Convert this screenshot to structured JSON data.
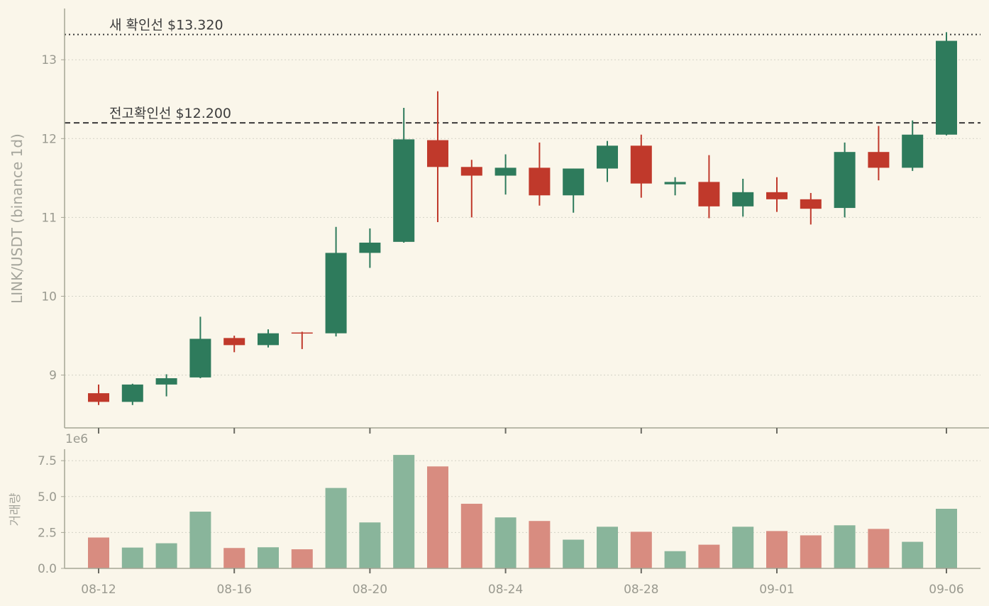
{
  "chart_data": {
    "type": "candlestick",
    "ylabel": "LINK/USDT (binance 1d)",
    "volume_ylabel": "거래량",
    "volume_scale_label": "1e6",
    "price_yticks": [
      9,
      10,
      11,
      12,
      13
    ],
    "price_ylim": [
      8.33,
      13.65
    ],
    "volume_yticks": [
      "0.0",
      "2.5",
      "5.0",
      "7.5"
    ],
    "volume_ylim": [
      0,
      8.3
    ],
    "x_tick_labels": [
      "08-12",
      "08-16",
      "08-20",
      "08-24",
      "08-28",
      "09-01",
      "09-06"
    ],
    "x_tick_dates": [
      "08-12",
      "08-16",
      "08-20",
      "08-24",
      "08-28",
      "09-01",
      "09-06"
    ],
    "grid": true,
    "colors": {
      "up": "#2e7b5c",
      "down": "#c0392b",
      "up_volume": "#89b59b",
      "down_volume": "#d88c80",
      "background": "#faf6ea",
      "axis": "#a5a595",
      "grid": "#d4d2c6",
      "reference_line": "#3a3a3a"
    },
    "reference_lines": [
      {
        "label": "새 확인선 $13.320",
        "value": 13.32,
        "style": "dotted"
      },
      {
        "label": "전고확인선 $12.200",
        "value": 12.2,
        "style": "dashed"
      }
    ],
    "candles": [
      {
        "date": "08-12",
        "open": 8.77,
        "high": 8.88,
        "low": 8.62,
        "close": 8.66,
        "volume": 2.15
      },
      {
        "date": "08-13",
        "open": 8.66,
        "high": 8.89,
        "low": 8.62,
        "close": 8.88,
        "volume": 1.45
      },
      {
        "date": "08-14",
        "open": 8.88,
        "high": 9.01,
        "low": 8.73,
        "close": 8.96,
        "volume": 1.75
      },
      {
        "date": "08-15",
        "open": 8.97,
        "high": 9.74,
        "low": 8.96,
        "close": 9.46,
        "volume": 3.95
      },
      {
        "date": "08-16",
        "open": 9.47,
        "high": 9.5,
        "low": 9.29,
        "close": 9.38,
        "volume": 1.42
      },
      {
        "date": "08-17",
        "open": 9.38,
        "high": 9.58,
        "low": 9.35,
        "close": 9.53,
        "volume": 1.47
      },
      {
        "date": "08-18",
        "open": 9.54,
        "high": 9.55,
        "low": 9.33,
        "close": 9.53,
        "volume": 1.33
      },
      {
        "date": "08-19",
        "open": 9.53,
        "high": 10.88,
        "low": 9.49,
        "close": 10.55,
        "volume": 5.6
      },
      {
        "date": "08-20",
        "open": 10.55,
        "high": 10.86,
        "low": 10.36,
        "close": 10.68,
        "volume": 3.2
      },
      {
        "date": "08-21",
        "open": 10.69,
        "high": 12.39,
        "low": 10.68,
        "close": 11.99,
        "volume": 7.9
      },
      {
        "date": "08-22",
        "open": 11.98,
        "high": 12.6,
        "low": 10.94,
        "close": 11.64,
        "volume": 7.1
      },
      {
        "date": "08-23",
        "open": 11.64,
        "high": 11.73,
        "low": 11.0,
        "close": 11.53,
        "volume": 4.5
      },
      {
        "date": "08-24",
        "open": 11.53,
        "high": 11.8,
        "low": 11.29,
        "close": 11.63,
        "volume": 3.55
      },
      {
        "date": "08-25",
        "open": 11.63,
        "high": 11.95,
        "low": 11.15,
        "close": 11.28,
        "volume": 3.3
      },
      {
        "date": "08-26",
        "open": 11.28,
        "high": 11.62,
        "low": 11.06,
        "close": 11.62,
        "volume": 2.0
      },
      {
        "date": "08-27",
        "open": 11.62,
        "high": 11.97,
        "low": 11.45,
        "close": 11.91,
        "volume": 2.9
      },
      {
        "date": "08-28",
        "open": 11.91,
        "high": 12.05,
        "low": 11.25,
        "close": 11.43,
        "volume": 2.55
      },
      {
        "date": "08-29",
        "open": 11.42,
        "high": 11.51,
        "low": 11.28,
        "close": 11.45,
        "volume": 1.2
      },
      {
        "date": "08-30",
        "open": 11.45,
        "high": 11.79,
        "low": 10.99,
        "close": 11.14,
        "volume": 1.65
      },
      {
        "date": "08-31",
        "open": 11.14,
        "high": 11.49,
        "low": 11.01,
        "close": 11.32,
        "volume": 2.9
      },
      {
        "date": "09-01",
        "open": 11.32,
        "high": 11.51,
        "low": 11.07,
        "close": 11.23,
        "volume": 2.6
      },
      {
        "date": "09-02",
        "open": 11.23,
        "high": 11.31,
        "low": 10.91,
        "close": 11.11,
        "volume": 2.3
      },
      {
        "date": "09-03",
        "open": 11.12,
        "high": 11.95,
        "low": 11.0,
        "close": 11.83,
        "volume": 3.0
      },
      {
        "date": "09-04",
        "open": 11.83,
        "high": 12.16,
        "low": 11.47,
        "close": 11.63,
        "volume": 2.75
      },
      {
        "date": "09-05",
        "open": 11.63,
        "high": 12.23,
        "low": 11.59,
        "close": 12.05,
        "volume": 1.85
      },
      {
        "date": "09-06",
        "open": 12.05,
        "high": 13.35,
        "low": 12.04,
        "close": 13.24,
        "volume": 4.15
      }
    ]
  }
}
